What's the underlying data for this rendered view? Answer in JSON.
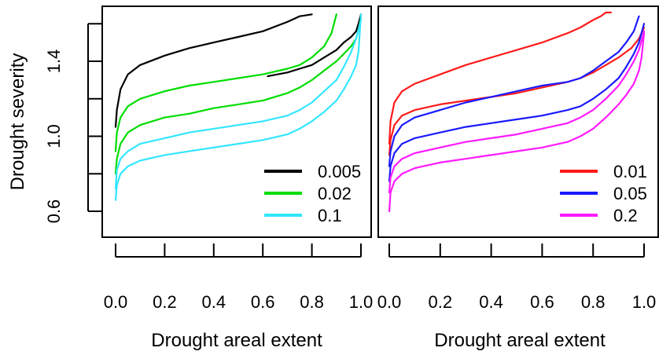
{
  "chart_data": [
    {
      "type": "line",
      "xlabel": "Drought areal extent",
      "ylabel": "Drought severity",
      "xlim": [
        0,
        1
      ],
      "ylim": [
        0.55,
        1.65
      ],
      "x_ticks": [
        "0.0",
        "0.2",
        "0.4",
        "0.6",
        "0.8",
        "1.0"
      ],
      "x_tick_values": [
        0,
        0.2,
        0.4,
        0.6,
        0.8,
        1.0
      ],
      "y_ticks": [
        "0.6",
        "1.0",
        "1.4"
      ],
      "y_tick_values": [
        0.6,
        1.0,
        1.4
      ],
      "legend_position": "bottom-right",
      "series": [
        {
          "name": "0.005",
          "color": "#000000",
          "lower": false,
          "x": [
            0,
            0.005,
            0.02,
            0.05,
            0.1,
            0.2,
            0.3,
            0.4,
            0.5,
            0.6,
            0.7,
            0.75,
            0.8
          ],
          "y": [
            1.05,
            1.14,
            1.25,
            1.33,
            1.38,
            1.43,
            1.47,
            1.5,
            1.53,
            1.56,
            1.61,
            1.64,
            1.65
          ]
        },
        {
          "name": "0.005",
          "color": "#000000",
          "lower": true,
          "x": [
            0.62,
            0.7,
            0.75,
            0.8,
            0.85,
            0.9,
            0.93,
            0.96,
            0.98,
            0.99,
            1.0
          ],
          "y": [
            1.32,
            1.34,
            1.36,
            1.38,
            1.42,
            1.46,
            1.5,
            1.53,
            1.56,
            1.6,
            1.65
          ]
        },
        {
          "name": "0.02",
          "color": "#00dd00",
          "lower": false,
          "x": [
            0,
            0.005,
            0.02,
            0.05,
            0.1,
            0.2,
            0.3,
            0.4,
            0.5,
            0.6,
            0.7,
            0.75,
            0.8,
            0.85,
            0.88,
            0.9
          ],
          "y": [
            0.92,
            1.02,
            1.1,
            1.16,
            1.2,
            1.24,
            1.27,
            1.29,
            1.31,
            1.33,
            1.36,
            1.38,
            1.42,
            1.48,
            1.55,
            1.65
          ]
        },
        {
          "name": "0.02",
          "color": "#00dd00",
          "lower": true,
          "x": [
            0,
            0.005,
            0.02,
            0.05,
            0.1,
            0.2,
            0.3,
            0.4,
            0.5,
            0.6,
            0.7,
            0.75,
            0.8,
            0.85,
            0.9,
            0.93,
            0.96,
            0.98,
            0.99,
            1.0
          ],
          "y": [
            0.8,
            0.88,
            0.96,
            1.02,
            1.06,
            1.1,
            1.12,
            1.15,
            1.17,
            1.19,
            1.23,
            1.26,
            1.3,
            1.35,
            1.4,
            1.44,
            1.48,
            1.52,
            1.57,
            1.63
          ]
        },
        {
          "name": "0.1",
          "color": "#33e6ff",
          "lower": false,
          "x": [
            0,
            0.005,
            0.02,
            0.05,
            0.1,
            0.2,
            0.3,
            0.4,
            0.5,
            0.6,
            0.7,
            0.75,
            0.8,
            0.85,
            0.9,
            0.93,
            0.96,
            0.98,
            1.0
          ],
          "y": [
            0.72,
            0.82,
            0.88,
            0.92,
            0.96,
            0.99,
            1.02,
            1.04,
            1.06,
            1.08,
            1.11,
            1.14,
            1.18,
            1.24,
            1.3,
            1.37,
            1.45,
            1.52,
            1.62
          ]
        },
        {
          "name": "0.1",
          "color": "#33e6ff",
          "lower": true,
          "x": [
            0,
            0.005,
            0.02,
            0.05,
            0.1,
            0.2,
            0.3,
            0.4,
            0.5,
            0.6,
            0.7,
            0.75,
            0.8,
            0.85,
            0.9,
            0.93,
            0.96,
            0.98,
            0.99,
            1.0
          ],
          "y": [
            0.66,
            0.74,
            0.8,
            0.84,
            0.87,
            0.9,
            0.92,
            0.94,
            0.96,
            0.98,
            1.01,
            1.04,
            1.08,
            1.13,
            1.19,
            1.25,
            1.32,
            1.38,
            1.45,
            1.65
          ]
        }
      ]
    },
    {
      "type": "line",
      "xlabel": "Drought areal extent",
      "ylabel": "",
      "xlim": [
        0,
        1
      ],
      "ylim": [
        0.55,
        1.65
      ],
      "x_ticks": [
        "0.0",
        "0.2",
        "0.4",
        "0.6",
        "0.8",
        "1.0"
      ],
      "x_tick_values": [
        0,
        0.2,
        0.4,
        0.6,
        0.8,
        1.0
      ],
      "legend_position": "bottom-right",
      "series": [
        {
          "name": "0.01",
          "color": "#ff1a1a",
          "lower": false,
          "x": [
            0,
            0.005,
            0.02,
            0.05,
            0.1,
            0.2,
            0.3,
            0.4,
            0.5,
            0.6,
            0.7,
            0.75,
            0.8,
            0.83,
            0.85,
            0.87
          ],
          "y": [
            0.96,
            1.08,
            1.18,
            1.24,
            1.28,
            1.33,
            1.38,
            1.42,
            1.46,
            1.5,
            1.55,
            1.58,
            1.62,
            1.64,
            1.66,
            1.66
          ]
        },
        {
          "name": "0.01",
          "color": "#ff1a1a",
          "lower": true,
          "x": [
            0,
            0.005,
            0.02,
            0.05,
            0.1,
            0.2,
            0.3,
            0.4,
            0.5,
            0.6,
            0.7,
            0.75,
            0.8,
            0.85,
            0.9,
            0.95,
            0.98,
            1.0
          ],
          "y": [
            0.9,
            0.98,
            1.06,
            1.11,
            1.14,
            1.17,
            1.19,
            1.21,
            1.23,
            1.26,
            1.29,
            1.31,
            1.34,
            1.38,
            1.42,
            1.47,
            1.52,
            1.58
          ]
        },
        {
          "name": "0.05",
          "color": "#1a1aff",
          "lower": false,
          "x": [
            0,
            0.005,
            0.02,
            0.05,
            0.1,
            0.2,
            0.3,
            0.4,
            0.5,
            0.6,
            0.7,
            0.75,
            0.8,
            0.85,
            0.9,
            0.93,
            0.96,
            0.98
          ],
          "y": [
            0.84,
            0.92,
            1.0,
            1.06,
            1.1,
            1.14,
            1.18,
            1.21,
            1.24,
            1.27,
            1.29,
            1.31,
            1.35,
            1.4,
            1.45,
            1.5,
            1.56,
            1.64
          ]
        },
        {
          "name": "0.05",
          "color": "#1a1aff",
          "lower": true,
          "x": [
            0,
            0.005,
            0.02,
            0.05,
            0.1,
            0.2,
            0.3,
            0.4,
            0.5,
            0.6,
            0.7,
            0.75,
            0.8,
            0.85,
            0.9,
            0.93,
            0.96,
            0.98,
            1.0
          ],
          "y": [
            0.76,
            0.84,
            0.91,
            0.96,
            0.99,
            1.02,
            1.05,
            1.07,
            1.09,
            1.11,
            1.14,
            1.16,
            1.2,
            1.25,
            1.31,
            1.37,
            1.44,
            1.5,
            1.6
          ]
        },
        {
          "name": "0.2",
          "color": "#ff1aff",
          "lower": false,
          "x": [
            0,
            0.005,
            0.02,
            0.05,
            0.1,
            0.2,
            0.3,
            0.4,
            0.5,
            0.6,
            0.7,
            0.75,
            0.8,
            0.85,
            0.9,
            0.93,
            0.96,
            0.98,
            1.0
          ],
          "y": [
            0.7,
            0.78,
            0.84,
            0.88,
            0.91,
            0.94,
            0.97,
            0.99,
            1.01,
            1.04,
            1.07,
            1.1,
            1.14,
            1.2,
            1.27,
            1.33,
            1.4,
            1.46,
            1.56
          ]
        },
        {
          "name": "0.2",
          "color": "#ff1aff",
          "lower": true,
          "x": [
            0,
            0.005,
            0.02,
            0.05,
            0.1,
            0.2,
            0.3,
            0.4,
            0.5,
            0.6,
            0.7,
            0.75,
            0.8,
            0.85,
            0.9,
            0.93,
            0.96,
            0.98,
            0.99,
            1.0
          ],
          "y": [
            0.6,
            0.7,
            0.76,
            0.8,
            0.83,
            0.86,
            0.88,
            0.9,
            0.92,
            0.94,
            0.97,
            1.0,
            1.04,
            1.1,
            1.17,
            1.22,
            1.28,
            1.35,
            1.42,
            1.55
          ]
        }
      ]
    }
  ],
  "legends": [
    [
      {
        "label": "0.005",
        "color": "#000000"
      },
      {
        "label": "0.02",
        "color": "#00dd00"
      },
      {
        "label": "0.1",
        "color": "#33e6ff"
      }
    ],
    [
      {
        "label": "0.01",
        "color": "#ff1a1a"
      },
      {
        "label": "0.05",
        "color": "#1a1aff"
      },
      {
        "label": "0.2",
        "color": "#ff1aff"
      }
    ]
  ]
}
